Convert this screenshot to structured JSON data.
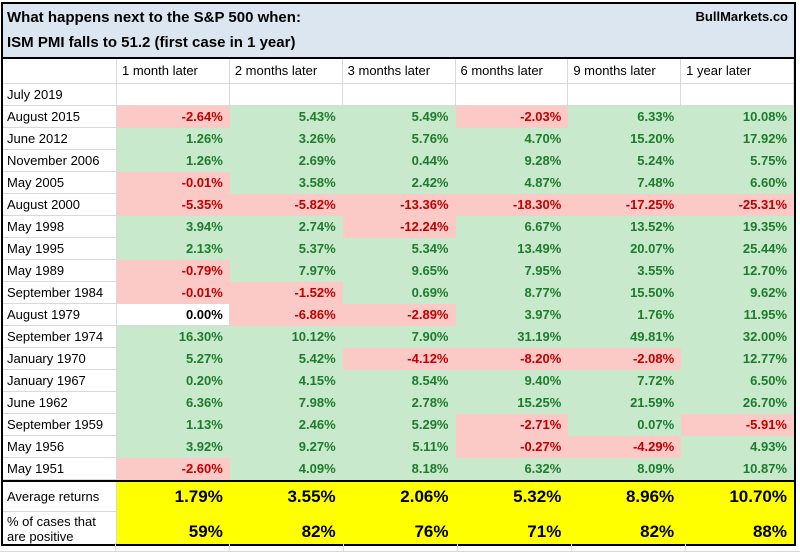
{
  "header": {
    "title_line1": "What happens next to the S&P 500 when:",
    "title_line2": "ISM PMI falls to 51.2 (first case in 1 year)",
    "brand": "BullMarkets.co"
  },
  "colors": {
    "title_bg": "#dce6f1",
    "positive_bg": "#c8e9cb",
    "positive_text": "#1e7b2c",
    "negative_bg": "#fbc9c6",
    "negative_text": "#c00000",
    "zero_bg": "#ffffff",
    "summary_bg": "#ffff00",
    "grid_line": "#d9d9d9",
    "frame": "#000000"
  },
  "chart_data": {
    "type": "table",
    "title": "What happens next to the S&P 500 when: ISM PMI falls to 51.2 (first case in 1 year)",
    "columns": [
      "1 month later",
      "2 months later",
      "3 months later",
      "6 months later",
      "9 months later",
      "1 year later"
    ],
    "rows": [
      {
        "label": "July 2019",
        "values": [
          "",
          "",
          "",
          "",
          "",
          ""
        ]
      },
      {
        "label": "August 2015",
        "values": [
          "-2.64%",
          "5.43%",
          "5.49%",
          "-2.03%",
          "6.33%",
          "10.08%"
        ]
      },
      {
        "label": "June 2012",
        "values": [
          "1.26%",
          "3.26%",
          "5.76%",
          "4.70%",
          "15.20%",
          "17.92%"
        ]
      },
      {
        "label": "November 2006",
        "values": [
          "1.26%",
          "2.69%",
          "0.44%",
          "9.28%",
          "5.24%",
          "5.75%"
        ]
      },
      {
        "label": "May 2005",
        "values": [
          "-0.01%",
          "3.58%",
          "2.42%",
          "4.87%",
          "7.48%",
          "6.60%"
        ]
      },
      {
        "label": "August 2000",
        "values": [
          "-5.35%",
          "-5.82%",
          "-13.36%",
          "-18.30%",
          "-17.25%",
          "-25.31%"
        ]
      },
      {
        "label": "May 1998",
        "values": [
          "3.94%",
          "2.74%",
          "-12.24%",
          "6.67%",
          "13.52%",
          "19.35%"
        ]
      },
      {
        "label": "May 1995",
        "values": [
          "2.13%",
          "5.37%",
          "5.34%",
          "13.49%",
          "20.07%",
          "25.44%"
        ]
      },
      {
        "label": "May 1989",
        "values": [
          "-0.79%",
          "7.97%",
          "9.65%",
          "7.95%",
          "3.55%",
          "12.70%"
        ]
      },
      {
        "label": "September 1984",
        "values": [
          "-0.01%",
          "-1.52%",
          "0.69%",
          "8.77%",
          "15.50%",
          "9.62%"
        ]
      },
      {
        "label": "August 1979",
        "values": [
          "0.00%",
          "-6.86%",
          "-2.89%",
          "3.97%",
          "1.76%",
          "11.95%"
        ]
      },
      {
        "label": "September 1974",
        "values": [
          "16.30%",
          "10.12%",
          "7.90%",
          "31.19%",
          "49.81%",
          "32.00%"
        ]
      },
      {
        "label": "January 1970",
        "values": [
          "5.27%",
          "5.42%",
          "-4.12%",
          "-8.20%",
          "-2.08%",
          "12.77%"
        ]
      },
      {
        "label": "January 1967",
        "values": [
          "0.20%",
          "4.15%",
          "8.54%",
          "9.40%",
          "7.72%",
          "6.50%"
        ]
      },
      {
        "label": "June 1962",
        "values": [
          "6.36%",
          "7.98%",
          "2.78%",
          "15.25%",
          "21.59%",
          "26.70%"
        ]
      },
      {
        "label": "September 1959",
        "values": [
          "1.13%",
          "2.46%",
          "5.29%",
          "-2.71%",
          "0.07%",
          "-5.91%"
        ]
      },
      {
        "label": "May 1956",
        "values": [
          "3.92%",
          "9.27%",
          "5.11%",
          "-0.27%",
          "-4.29%",
          "4.93%"
        ]
      },
      {
        "label": "May 1951",
        "values": [
          "-2.60%",
          "4.09%",
          "8.18%",
          "6.32%",
          "8.09%",
          "10.87%"
        ]
      }
    ],
    "summary_rows": [
      {
        "label": "Average returns",
        "label_lines": [
          "Average returns"
        ],
        "values": [
          "1.79%",
          "3.55%",
          "2.06%",
          "5.32%",
          "8.96%",
          "10.70%"
        ]
      },
      {
        "label": "% of cases that are positive",
        "label_lines": [
          "% of cases that",
          "are positive"
        ],
        "values": [
          "59%",
          "82%",
          "76%",
          "71%",
          "82%",
          "88%"
        ]
      }
    ],
    "value_format": "percent",
    "color_coding": "green fill = positive return, pink fill = negative return, white = zero or no data, yellow = summary"
  }
}
